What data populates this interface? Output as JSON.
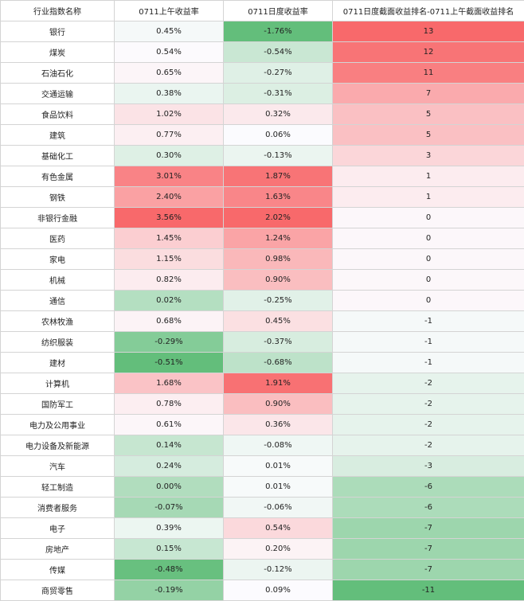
{
  "headers": [
    "行业指数名称",
    "0711上午收益率",
    "0711日度收益率",
    "0711日度截面收益排名-0711上午截面收益排名"
  ],
  "chart_data": {
    "type": "table",
    "columns": [
      "行业指数名称",
      "0711上午收益率",
      "0711日度收益率",
      "0711日度截面收益排名-0711上午截面收益排名"
    ],
    "rows": [
      {
        "name": "银行",
        "am": "0.45%",
        "day": "-1.76%",
        "rank": "13",
        "am_v": 0.45,
        "day_v": -1.76,
        "rank_v": 13
      },
      {
        "name": "煤炭",
        "am": "0.54%",
        "day": "-0.54%",
        "rank": "12",
        "am_v": 0.54,
        "day_v": -0.54,
        "rank_v": 12
      },
      {
        "name": "石油石化",
        "am": "0.65%",
        "day": "-0.27%",
        "rank": "11",
        "am_v": 0.65,
        "day_v": -0.27,
        "rank_v": 11
      },
      {
        "name": "交通运输",
        "am": "0.38%",
        "day": "-0.31%",
        "rank": "7",
        "am_v": 0.38,
        "day_v": -0.31,
        "rank_v": 7
      },
      {
        "name": "食品饮料",
        "am": "1.02%",
        "day": "0.32%",
        "rank": "5",
        "am_v": 1.02,
        "day_v": 0.32,
        "rank_v": 5
      },
      {
        "name": "建筑",
        "am": "0.77%",
        "day": "0.06%",
        "rank": "5",
        "am_v": 0.77,
        "day_v": 0.06,
        "rank_v": 5
      },
      {
        "name": "基础化工",
        "am": "0.30%",
        "day": "-0.13%",
        "rank": "3",
        "am_v": 0.3,
        "day_v": -0.13,
        "rank_v": 3
      },
      {
        "name": "有色金属",
        "am": "3.01%",
        "day": "1.87%",
        "rank": "1",
        "am_v": 3.01,
        "day_v": 1.87,
        "rank_v": 1
      },
      {
        "name": "钢铁",
        "am": "2.40%",
        "day": "1.63%",
        "rank": "1",
        "am_v": 2.4,
        "day_v": 1.63,
        "rank_v": 1
      },
      {
        "name": "非银行金融",
        "am": "3.56%",
        "day": "2.02%",
        "rank": "0",
        "am_v": 3.56,
        "day_v": 2.02,
        "rank_v": 0
      },
      {
        "name": "医药",
        "am": "1.45%",
        "day": "1.24%",
        "rank": "0",
        "am_v": 1.45,
        "day_v": 1.24,
        "rank_v": 0
      },
      {
        "name": "家电",
        "am": "1.15%",
        "day": "0.98%",
        "rank": "0",
        "am_v": 1.15,
        "day_v": 0.98,
        "rank_v": 0
      },
      {
        "name": "机械",
        "am": "0.82%",
        "day": "0.90%",
        "rank": "0",
        "am_v": 0.82,
        "day_v": 0.9,
        "rank_v": 0
      },
      {
        "name": "通信",
        "am": "0.02%",
        "day": "-0.25%",
        "rank": "0",
        "am_v": 0.02,
        "day_v": -0.25,
        "rank_v": 0
      },
      {
        "name": "农林牧渔",
        "am": "0.68%",
        "day": "0.45%",
        "rank": "-1",
        "am_v": 0.68,
        "day_v": 0.45,
        "rank_v": -1
      },
      {
        "name": "纺织服装",
        "am": "-0.29%",
        "day": "-0.37%",
        "rank": "-1",
        "am_v": -0.29,
        "day_v": -0.37,
        "rank_v": -1
      },
      {
        "name": "建材",
        "am": "-0.51%",
        "day": "-0.68%",
        "rank": "-1",
        "am_v": -0.51,
        "day_v": -0.68,
        "rank_v": -1
      },
      {
        "name": "计算机",
        "am": "1.68%",
        "day": "1.91%",
        "rank": "-2",
        "am_v": 1.68,
        "day_v": 1.91,
        "rank_v": -2
      },
      {
        "name": "国防军工",
        "am": "0.78%",
        "day": "0.90%",
        "rank": "-2",
        "am_v": 0.78,
        "day_v": 0.9,
        "rank_v": -2
      },
      {
        "name": "电力及公用事业",
        "am": "0.61%",
        "day": "0.36%",
        "rank": "-2",
        "am_v": 0.61,
        "day_v": 0.36,
        "rank_v": -2
      },
      {
        "name": "电力设备及新能源",
        "am": "0.14%",
        "day": "-0.08%",
        "rank": "-2",
        "am_v": 0.14,
        "day_v": -0.08,
        "rank_v": -2
      },
      {
        "name": "汽车",
        "am": "0.24%",
        "day": "0.01%",
        "rank": "-3",
        "am_v": 0.24,
        "day_v": 0.01,
        "rank_v": -3
      },
      {
        "name": "轻工制造",
        "am": "0.00%",
        "day": "0.01%",
        "rank": "-6",
        "am_v": 0.0,
        "day_v": 0.01,
        "rank_v": -6
      },
      {
        "name": "消费者服务",
        "am": "-0.07%",
        "day": "-0.06%",
        "rank": "-6",
        "am_v": -0.07,
        "day_v": -0.06,
        "rank_v": -6
      },
      {
        "name": "电子",
        "am": "0.39%",
        "day": "0.54%",
        "rank": "-7",
        "am_v": 0.39,
        "day_v": 0.54,
        "rank_v": -7
      },
      {
        "name": "房地产",
        "am": "0.15%",
        "day": "0.20%",
        "rank": "-7",
        "am_v": 0.15,
        "day_v": 0.2,
        "rank_v": -7
      },
      {
        "name": "传媒",
        "am": "-0.48%",
        "day": "-0.12%",
        "rank": "-7",
        "am_v": -0.48,
        "day_v": -0.12,
        "rank_v": -7
      },
      {
        "name": "商贸零售",
        "am": "-0.19%",
        "day": "0.09%",
        "rank": "-11",
        "am_v": -0.19,
        "day_v": 0.09,
        "rank_v": -11
      }
    ]
  },
  "colors": {
    "high": "#f8696b",
    "mid": "#fcfcff",
    "low": "#63be7b"
  }
}
